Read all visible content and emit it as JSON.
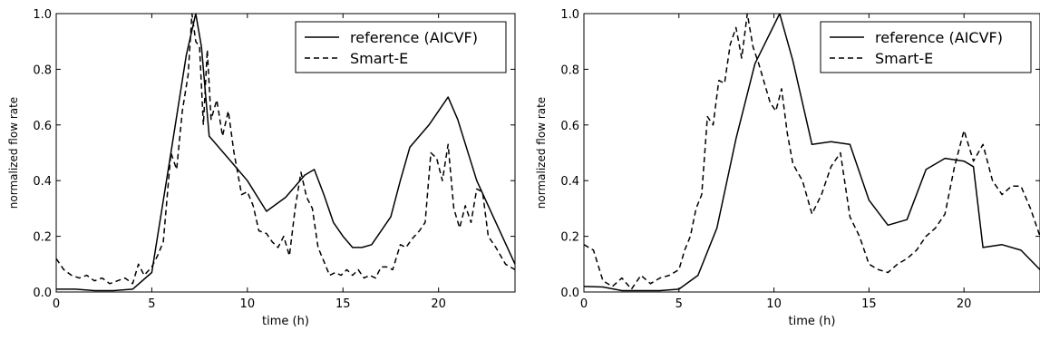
{
  "chart_data": [
    {
      "type": "line",
      "xlabel": "time (h)",
      "ylabel": "normalized flow rate",
      "xlim": [
        0,
        24
      ],
      "ylim": [
        0,
        1
      ],
      "x_ticks": [
        0,
        5,
        10,
        15,
        20
      ],
      "y_ticks": [
        0.0,
        0.2,
        0.4,
        0.6,
        0.8,
        1.0
      ],
      "grid": false,
      "legend_position": "top-right",
      "series": [
        {
          "name": "reference (AICVF)",
          "style": "solid",
          "color": "#000000",
          "points": [
            [
              0,
              0.01
            ],
            [
              1,
              0.01
            ],
            [
              2,
              0.005
            ],
            [
              3,
              0.005
            ],
            [
              4,
              0.01
            ],
            [
              5,
              0.07
            ],
            [
              6,
              0.5
            ],
            [
              6.8,
              0.85
            ],
            [
              7.3,
              1.0
            ],
            [
              7.6,
              0.88
            ],
            [
              8,
              0.56
            ],
            [
              9,
              0.48
            ],
            [
              10,
              0.4
            ],
            [
              11,
              0.29
            ],
            [
              12,
              0.34
            ],
            [
              13,
              0.42
            ],
            [
              13.5,
              0.44
            ],
            [
              14,
              0.35
            ],
            [
              14.5,
              0.25
            ],
            [
              15,
              0.2
            ],
            [
              15.5,
              0.16
            ],
            [
              16,
              0.16
            ],
            [
              16.5,
              0.17
            ],
            [
              17.5,
              0.27
            ],
            [
              18,
              0.4
            ],
            [
              18.5,
              0.52
            ],
            [
              19.5,
              0.6
            ],
            [
              20.5,
              0.7
            ],
            [
              21,
              0.62
            ],
            [
              22,
              0.4
            ],
            [
              23,
              0.25
            ],
            [
              24,
              0.1
            ]
          ]
        },
        {
          "name": "Smart-E",
          "style": "dashed",
          "color": "#000000",
          "points": [
            [
              0,
              0.12
            ],
            [
              0.4,
              0.08
            ],
            [
              0.8,
              0.06
            ],
            [
              1.2,
              0.05
            ],
            [
              1.6,
              0.06
            ],
            [
              2,
              0.04
            ],
            [
              2.4,
              0.05
            ],
            [
              2.8,
              0.03
            ],
            [
              3.2,
              0.04
            ],
            [
              3.6,
              0.05
            ],
            [
              4,
              0.03
            ],
            [
              4.3,
              0.1
            ],
            [
              4.6,
              0.06
            ],
            [
              5,
              0.09
            ],
            [
              5.3,
              0.13
            ],
            [
              5.6,
              0.18
            ],
            [
              6,
              0.5
            ],
            [
              6.3,
              0.44
            ],
            [
              6.6,
              0.65
            ],
            [
              6.9,
              0.78
            ],
            [
              7.1,
              1.0
            ],
            [
              7.3,
              0.9
            ],
            [
              7.5,
              0.88
            ],
            [
              7.7,
              0.6
            ],
            [
              7.9,
              0.87
            ],
            [
              8.1,
              0.62
            ],
            [
              8.4,
              0.69
            ],
            [
              8.7,
              0.56
            ],
            [
              9,
              0.65
            ],
            [
              9.3,
              0.5
            ],
            [
              9.7,
              0.35
            ],
            [
              10,
              0.36
            ],
            [
              10.3,
              0.31
            ],
            [
              10.6,
              0.22
            ],
            [
              11,
              0.21
            ],
            [
              11.3,
              0.18
            ],
            [
              11.6,
              0.16
            ],
            [
              11.9,
              0.2
            ],
            [
              12.2,
              0.13
            ],
            [
              12.5,
              0.3
            ],
            [
              12.8,
              0.43
            ],
            [
              13.1,
              0.34
            ],
            [
              13.4,
              0.3
            ],
            [
              13.7,
              0.16
            ],
            [
              14,
              0.11
            ],
            [
              14.3,
              0.06
            ],
            [
              14.6,
              0.07
            ],
            [
              14.9,
              0.06
            ],
            [
              15.2,
              0.08
            ],
            [
              15.5,
              0.06
            ],
            [
              15.8,
              0.08
            ],
            [
              16.1,
              0.05
            ],
            [
              16.4,
              0.06
            ],
            [
              16.7,
              0.05
            ],
            [
              17,
              0.09
            ],
            [
              17.3,
              0.09
            ],
            [
              17.6,
              0.08
            ],
            [
              18,
              0.17
            ],
            [
              18.3,
              0.16
            ],
            [
              18.6,
              0.19
            ],
            [
              19,
              0.22
            ],
            [
              19.3,
              0.25
            ],
            [
              19.6,
              0.5
            ],
            [
              19.9,
              0.48
            ],
            [
              20.2,
              0.4
            ],
            [
              20.5,
              0.53
            ],
            [
              20.8,
              0.3
            ],
            [
              21.1,
              0.23
            ],
            [
              21.4,
              0.31
            ],
            [
              21.7,
              0.25
            ],
            [
              22,
              0.37
            ],
            [
              22.3,
              0.36
            ],
            [
              22.6,
              0.2
            ],
            [
              23,
              0.16
            ],
            [
              23.5,
              0.1
            ],
            [
              24,
              0.08
            ]
          ]
        }
      ]
    },
    {
      "type": "line",
      "xlabel": "time (h)",
      "ylabel": "normalized flow rate",
      "xlim": [
        0,
        24
      ],
      "ylim": [
        0,
        1
      ],
      "x_ticks": [
        0,
        5,
        10,
        15,
        20
      ],
      "y_ticks": [
        0.0,
        0.2,
        0.4,
        0.6,
        0.8,
        1.0
      ],
      "grid": false,
      "legend_position": "top-right",
      "series": [
        {
          "name": "reference (AICVF)",
          "style": "solid",
          "color": "#000000",
          "points": [
            [
              0,
              0.02
            ],
            [
              1,
              0.018
            ],
            [
              2,
              0.005
            ],
            [
              3,
              0.005
            ],
            [
              4,
              0.005
            ],
            [
              5,
              0.01
            ],
            [
              6,
              0.06
            ],
            [
              7,
              0.23
            ],
            [
              8,
              0.55
            ],
            [
              9,
              0.82
            ],
            [
              10.3,
              1.0
            ],
            [
              11,
              0.83
            ],
            [
              12,
              0.53
            ],
            [
              13,
              0.54
            ],
            [
              14,
              0.53
            ],
            [
              15,
              0.33
            ],
            [
              16,
              0.24
            ],
            [
              17,
              0.26
            ],
            [
              18,
              0.44
            ],
            [
              19,
              0.48
            ],
            [
              20,
              0.47
            ],
            [
              20.5,
              0.45
            ],
            [
              21,
              0.16
            ],
            [
              22,
              0.17
            ],
            [
              23,
              0.15
            ],
            [
              24,
              0.08
            ]
          ]
        },
        {
          "name": "Smart-E",
          "style": "dashed",
          "color": "#000000",
          "points": [
            [
              0,
              0.17
            ],
            [
              0.5,
              0.15
            ],
            [
              1,
              0.04
            ],
            [
              1.5,
              0.02
            ],
            [
              2,
              0.05
            ],
            [
              2.5,
              0.01
            ],
            [
              3,
              0.06
            ],
            [
              3.5,
              0.03
            ],
            [
              4,
              0.05
            ],
            [
              4.5,
              0.06
            ],
            [
              5,
              0.08
            ],
            [
              5.3,
              0.15
            ],
            [
              5.6,
              0.2
            ],
            [
              5.9,
              0.3
            ],
            [
              6.2,
              0.35
            ],
            [
              6.5,
              0.63
            ],
            [
              6.8,
              0.6
            ],
            [
              7.1,
              0.76
            ],
            [
              7.4,
              0.75
            ],
            [
              7.7,
              0.89
            ],
            [
              8,
              0.95
            ],
            [
              8.3,
              0.84
            ],
            [
              8.6,
              1.0
            ],
            [
              8.9,
              0.88
            ],
            [
              9.2,
              0.82
            ],
            [
              9.5,
              0.75
            ],
            [
              9.8,
              0.68
            ],
            [
              10.1,
              0.65
            ],
            [
              10.4,
              0.73
            ],
            [
              10.7,
              0.57
            ],
            [
              11,
              0.46
            ],
            [
              11.5,
              0.4
            ],
            [
              12,
              0.28
            ],
            [
              12.5,
              0.35
            ],
            [
              13,
              0.45
            ],
            [
              13.5,
              0.5
            ],
            [
              14,
              0.27
            ],
            [
              14.5,
              0.2
            ],
            [
              15,
              0.1
            ],
            [
              15.5,
              0.08
            ],
            [
              16,
              0.07
            ],
            [
              16.5,
              0.1
            ],
            [
              17,
              0.12
            ],
            [
              17.5,
              0.15
            ],
            [
              18,
              0.2
            ],
            [
              18.5,
              0.23
            ],
            [
              19,
              0.28
            ],
            [
              19.5,
              0.45
            ],
            [
              20,
              0.58
            ],
            [
              20.5,
              0.47
            ],
            [
              21,
              0.53
            ],
            [
              21.5,
              0.4
            ],
            [
              22,
              0.35
            ],
            [
              22.5,
              0.38
            ],
            [
              23,
              0.38
            ],
            [
              23.5,
              0.3
            ],
            [
              24,
              0.2
            ]
          ]
        }
      ]
    }
  ]
}
